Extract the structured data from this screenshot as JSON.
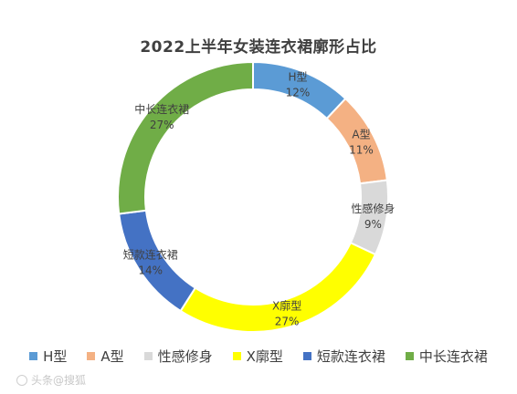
{
  "chart_data": {
    "type": "pie",
    "title": "2022上半年女装连衣裙廓形占比",
    "categories": [
      "H型",
      "A型",
      "性感修身",
      "X廓型",
      "短款连衣裙",
      "中长连衣裙"
    ],
    "values": [
      12,
      11,
      9,
      27,
      14,
      27
    ],
    "labels": [
      "12%",
      "11%",
      "9%",
      "27%",
      "14%",
      "27%"
    ],
    "colors": [
      "#5b9bd5",
      "#f4b183",
      "#d9d9d9",
      "#ffff00",
      "#4472c4",
      "#70ad47"
    ],
    "legend_position": "bottom",
    "donut": true
  },
  "watermark": "头条@搜狐"
}
